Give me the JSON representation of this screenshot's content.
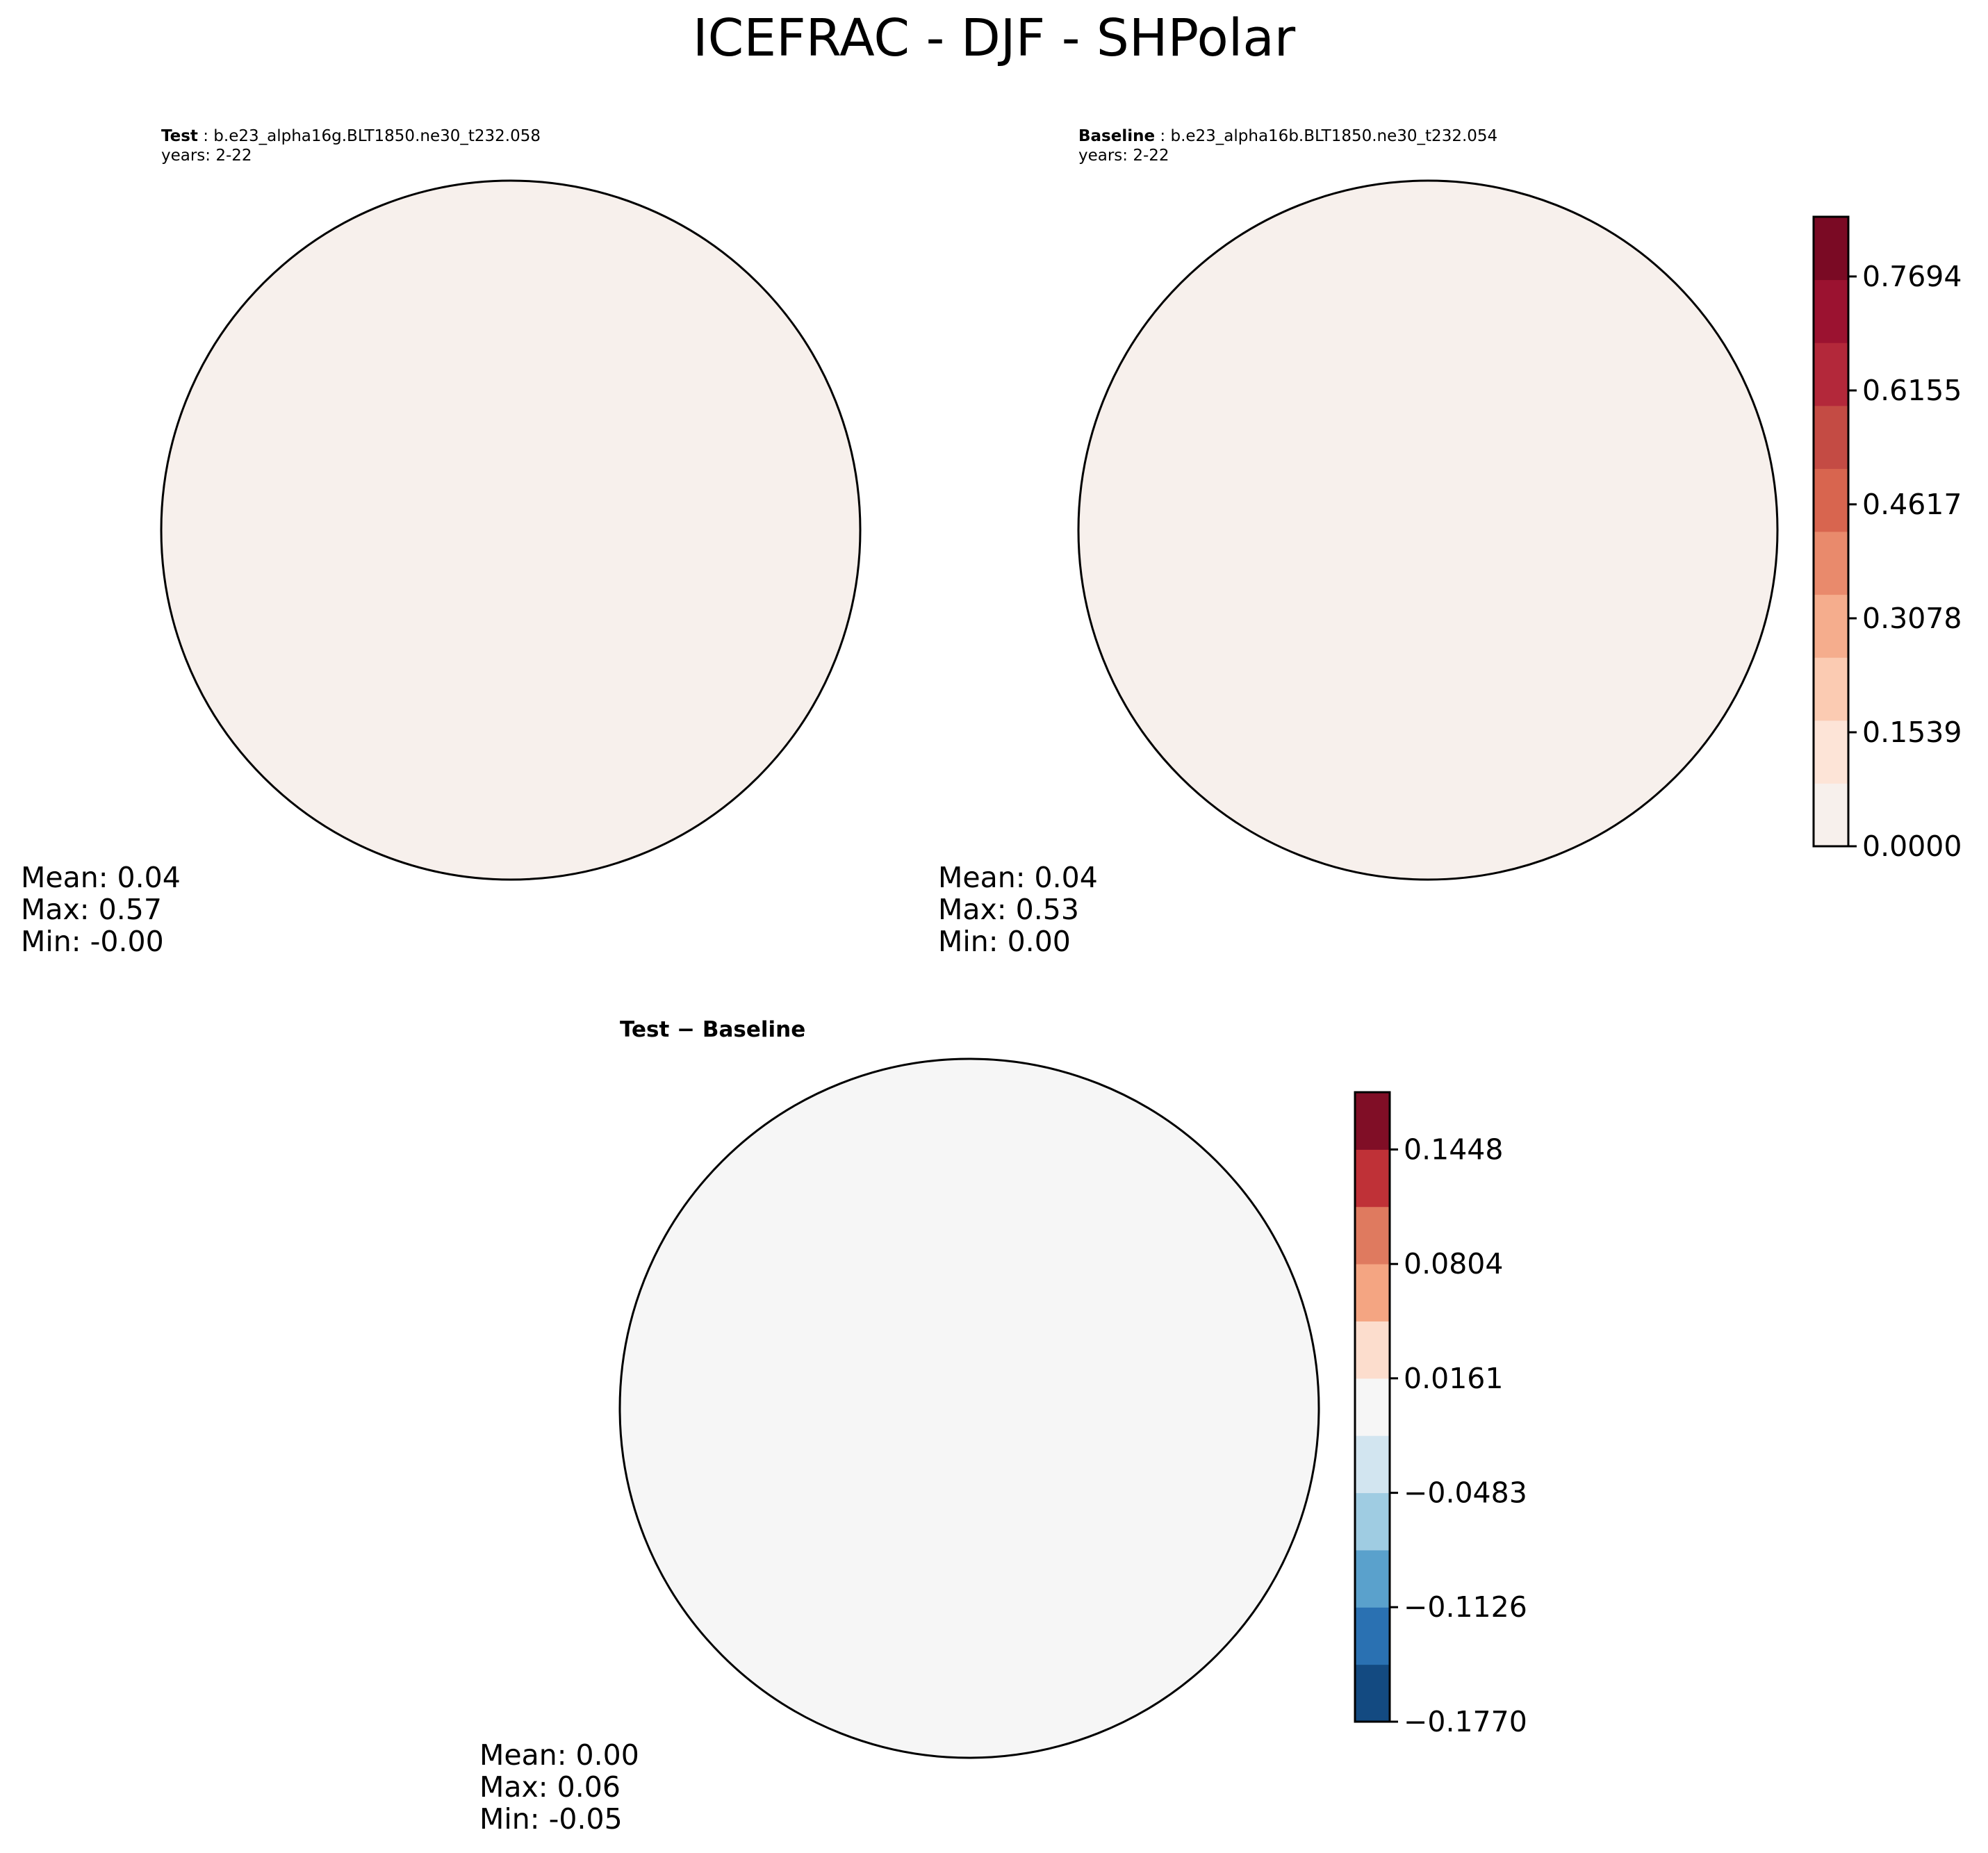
{
  "title": "ICEFRAC - DJF - SHPolar",
  "panels": {
    "test": {
      "label": "Test",
      "case": "b.e23_alpha16g.BLT1850.ne30_t232.058",
      "years": "years: 2-22",
      "stats": {
        "mean": "Mean:  0.04",
        "max": "Max:  0.57",
        "min": "Min: -0.00"
      }
    },
    "baseline": {
      "label": "Baseline",
      "case": "b.e23_alpha16b.BLT1850.ne30_t232.054",
      "years": "years: 2-22",
      "stats": {
        "mean": "Mean:  0.04",
        "max": "Max:  0.53",
        "min": "Min:  0.00"
      }
    },
    "diff": {
      "label": "Test − Baseline",
      "stats": {
        "mean": "Mean:  0.00",
        "max": "Max:  0.06",
        "min": "Min: -0.05"
      }
    }
  },
  "colorbars": {
    "main": {
      "ticks": [
        "0.0000",
        "0.1539",
        "0.3078",
        "0.4617",
        "0.6155",
        "0.7694"
      ],
      "tick_values": [
        0.0,
        0.1539,
        0.3078,
        0.4617,
        0.6155,
        0.7694
      ],
      "range": [
        0.0,
        0.85
      ],
      "colors": [
        "#f7f0ec",
        "#fde4d7",
        "#fbcbb2",
        "#f5ad8d",
        "#e98a6c",
        "#d8654f",
        "#c44b44",
        "#b3283a",
        "#9b1230",
        "#7a0a24"
      ]
    },
    "diff": {
      "ticks": [
        "−0.1770",
        "−0.1126",
        "−0.0483",
        "0.0161",
        "0.0804",
        "0.1448"
      ],
      "tick_values": [
        -0.177,
        -0.1126,
        -0.0483,
        0.0161,
        0.0804,
        0.1448
      ],
      "range": [
        -0.177,
        0.177
      ],
      "colors": [
        "#134a81",
        "#2a71b2",
        "#5aa1cc",
        "#9fcce2",
        "#d2e5f0",
        "#f6f6f6",
        "#fcddcd",
        "#f4a582",
        "#df7a5f",
        "#bf3137",
        "#800e26"
      ]
    }
  }
}
